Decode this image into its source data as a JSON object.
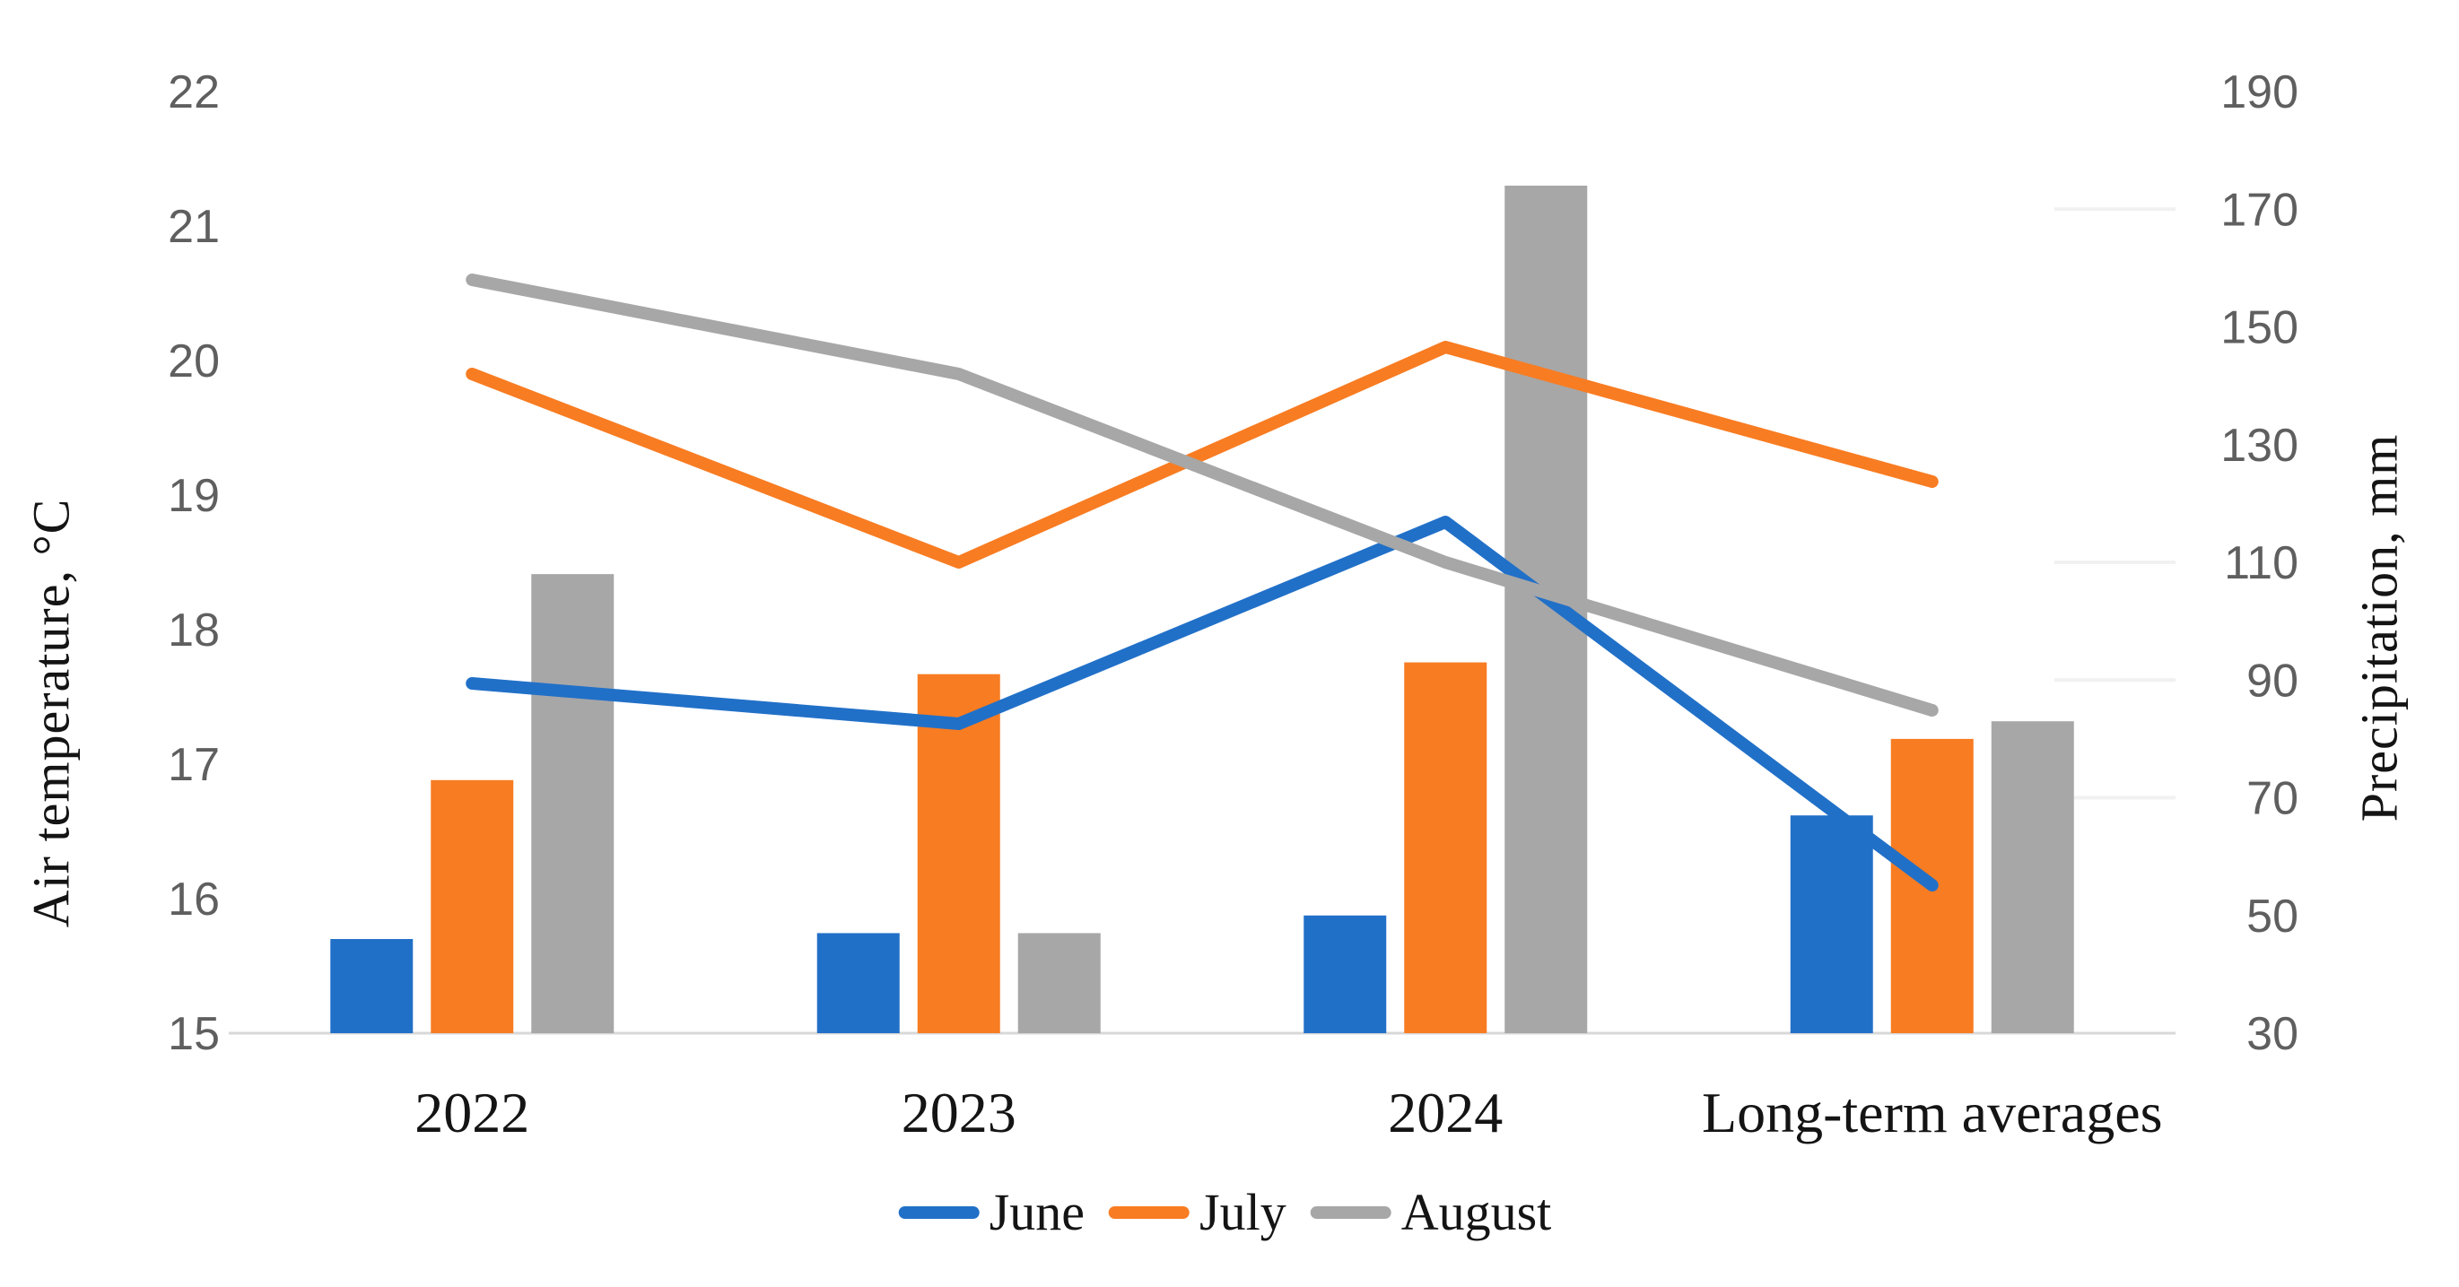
{
  "page": {
    "background": "#ffffff"
  },
  "chart_data": {
    "type": "combo (clustered bars on right axis + lines on left axis, dual y-axes)",
    "categories": [
      "2022",
      "2023",
      "2024",
      "Long-term averages"
    ],
    "series_bars": [
      {
        "name": "June",
        "color": "#2170C8",
        "axis": "right",
        "unit": "mm",
        "values": [
          46,
          47,
          50,
          67
        ]
      },
      {
        "name": "July",
        "color": "#F87C22",
        "axis": "right",
        "unit": "mm",
        "values": [
          73,
          91,
          93,
          80
        ]
      },
      {
        "name": "August",
        "color": "#A7A7A7",
        "axis": "right",
        "unit": "mm",
        "values": [
          108,
          47,
          174,
          83
        ]
      }
    ],
    "series_lines": [
      {
        "name": "June",
        "color": "#2170C8",
        "axis": "left",
        "unit": "°C",
        "values": [
          17.6,
          17.3,
          18.8,
          16.1
        ]
      },
      {
        "name": "July",
        "color": "#F87C22",
        "axis": "left",
        "unit": "°C",
        "values": [
          19.9,
          18.5,
          20.1,
          19.1
        ]
      },
      {
        "name": "August",
        "color": "#A7A7A7",
        "axis": "left",
        "unit": "°C",
        "values": [
          20.6,
          19.9,
          18.5,
          17.4
        ]
      }
    ],
    "left_axis": {
      "title": "Air temperature, °C",
      "min": 15,
      "max": 22,
      "step": 1,
      "ticks": [
        15,
        16,
        17,
        18,
        19,
        20,
        21,
        22
      ]
    },
    "right_axis": {
      "title": "Precipitation, mm",
      "min": 30,
      "max": 190,
      "step": 20,
      "ticks": [
        30,
        50,
        70,
        90,
        110,
        130,
        150,
        170,
        190
      ]
    },
    "legend": {
      "position": "bottom",
      "entries": [
        "June",
        "July",
        "August"
      ]
    },
    "grid": "off (only faint stub gridlines near right axis and a light baseline)"
  },
  "colors": {
    "tick_text": "#5f5f5f",
    "label_text": "#141414",
    "axis_line": "#d8d8d8",
    "faint_grid": "#f1f1f1",
    "background": "#ffffff"
  }
}
